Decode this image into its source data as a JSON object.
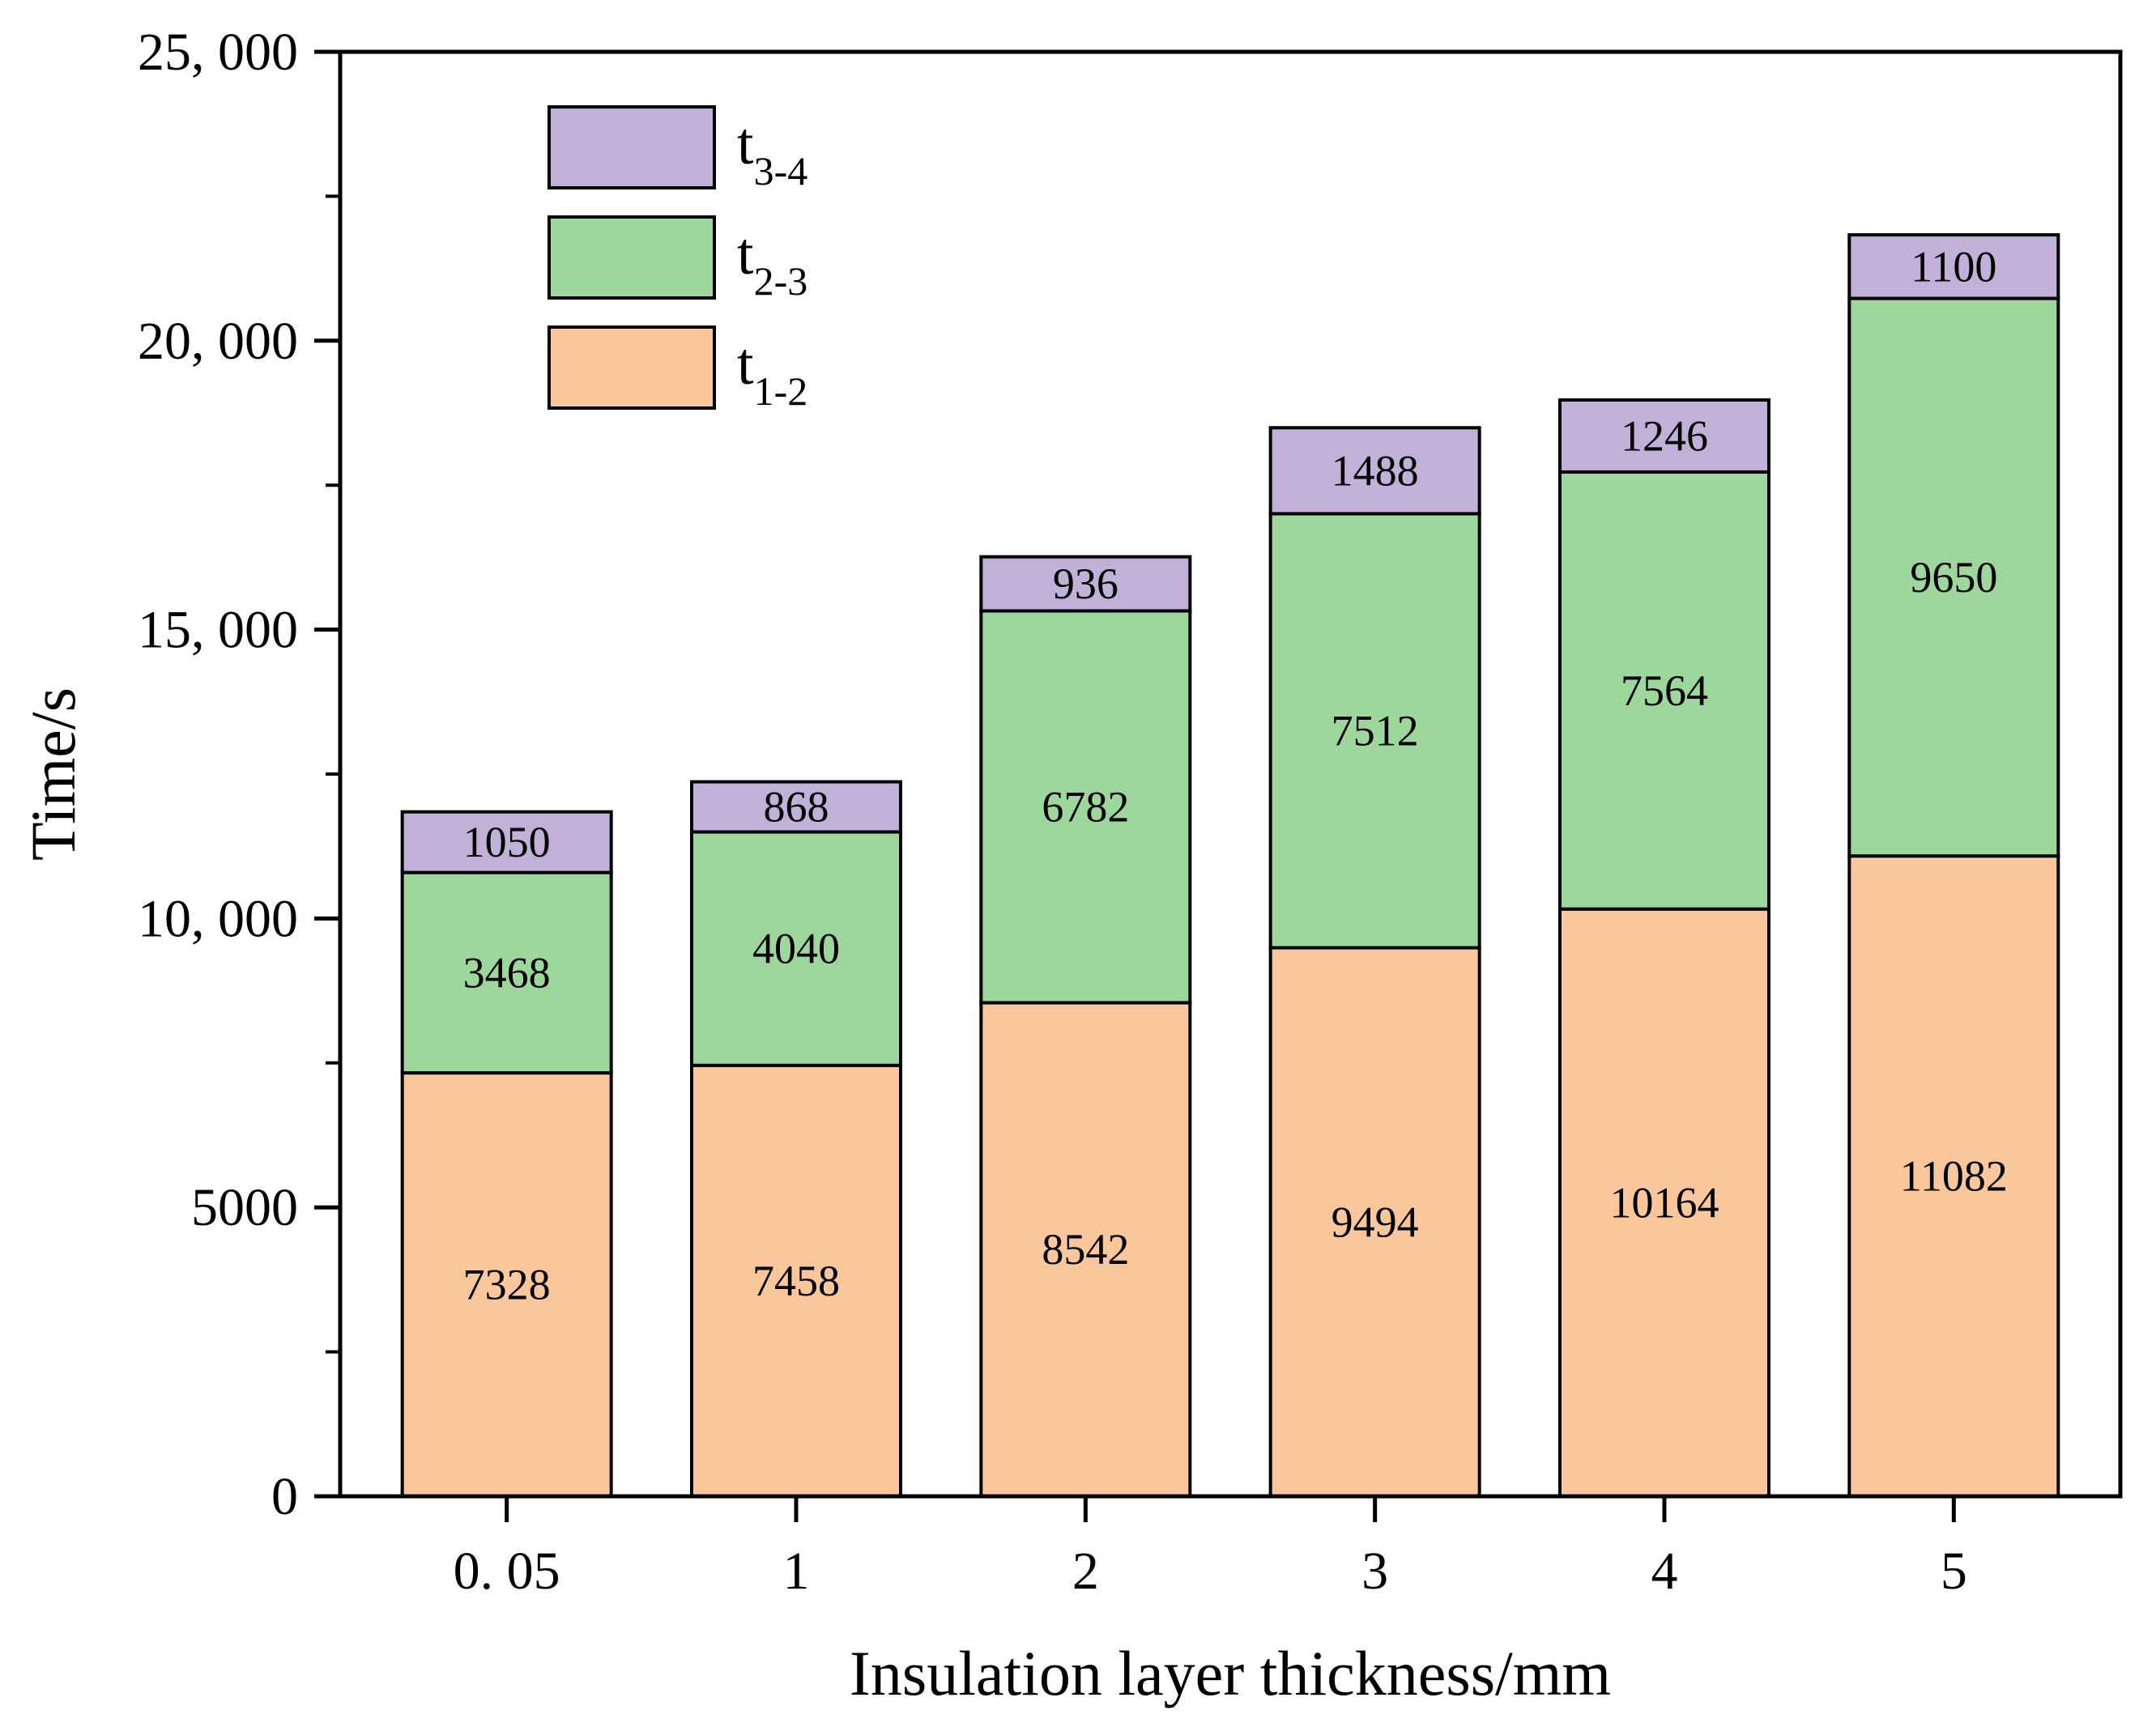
{
  "chart_data": {
    "type": "bar",
    "stacked": true,
    "title": "",
    "xlabel": "Insulation layer thickness/mm",
    "ylabel": "Time/s",
    "categories": [
      "0. 05",
      "1",
      "2",
      "3",
      "4",
      "5"
    ],
    "ylim": [
      0,
      25000
    ],
    "yticks": [
      0,
      5000,
      10000,
      15000,
      20000,
      25000
    ],
    "ytick_labels": [
      "0",
      "5000",
      "10, 000",
      "15, 000",
      "20, 000",
      "25, 000"
    ],
    "grid": false,
    "legend_position": "top-left",
    "series": [
      {
        "name": "t1-2",
        "legend_main": "t",
        "legend_sub": "1-2",
        "color": "#f9c79b",
        "values": [
          7328,
          7458,
          8542,
          9494,
          10164,
          11082
        ]
      },
      {
        "name": "t2-3",
        "legend_main": "t",
        "legend_sub": "2-3",
        "color": "#9dd79b",
        "values": [
          3468,
          4040,
          6782,
          7512,
          7564,
          9650
        ]
      },
      {
        "name": "t3-4",
        "legend_main": "t",
        "legend_sub": "3-4",
        "color": "#c1b1d8",
        "values": [
          1050,
          868,
          936,
          1488,
          1246,
          1100
        ]
      }
    ]
  }
}
